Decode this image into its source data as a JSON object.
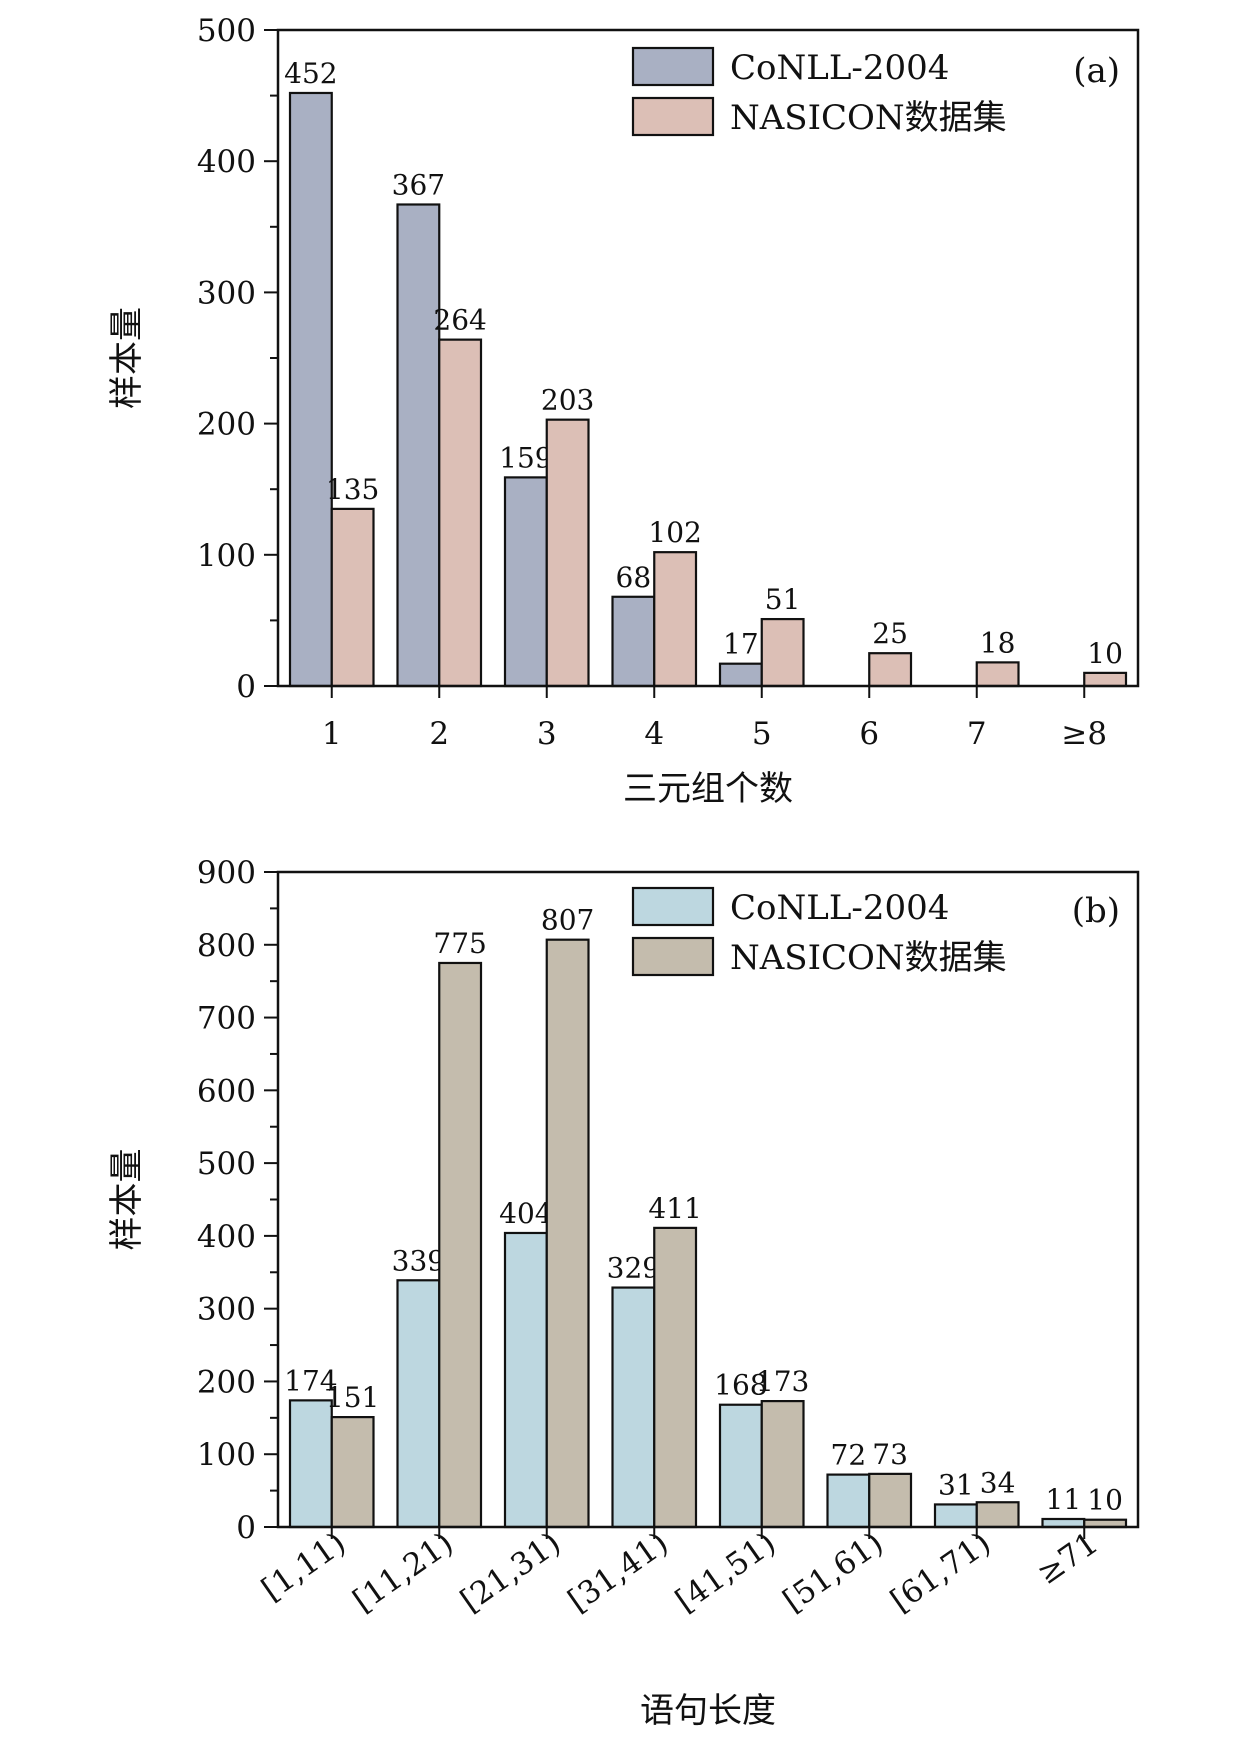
{
  "chart_data": [
    {
      "type": "bar",
      "panel": "(a)",
      "xlabel": "三元组个数",
      "ylabel": "样本量",
      "categories": [
        "1",
        "2",
        "3",
        "4",
        "5",
        "6",
        "7",
        "≥8"
      ],
      "series": [
        {
          "name": "CoNLL-2004",
          "color": "#a9b0c3",
          "values": [
            452,
            367,
            159,
            68,
            17,
            null,
            null,
            null
          ]
        },
        {
          "name": "NASICON数据集",
          "color": "#dcbfb6",
          "values": [
            135,
            264,
            203,
            102,
            51,
            25,
            18,
            10
          ]
        }
      ],
      "ylim": [
        0,
        500
      ],
      "yticks": [
        0,
        100,
        200,
        300,
        400,
        500
      ],
      "legend_position": "top-right"
    },
    {
      "type": "bar",
      "panel": "(b)",
      "xlabel": "语句长度",
      "ylabel": "样本量",
      "categories": [
        "[1,11)",
        "[11,21)",
        "[21,31)",
        "[31,41)",
        "[41,51)",
        "[51,61)",
        "[61,71)",
        "≥71"
      ],
      "series": [
        {
          "name": "CoNLL-2004",
          "color": "#bdd7e0",
          "values": [
            174,
            339,
            404,
            329,
            168,
            72,
            31,
            11
          ]
        },
        {
          "name": "NASICON数据集",
          "color": "#c4bcad",
          "values": [
            151,
            775,
            807,
            411,
            173,
            73,
            34,
            10
          ]
        }
      ],
      "ylim": [
        0,
        900
      ],
      "yticks": [
        0,
        100,
        200,
        300,
        400,
        500,
        600,
        700,
        800,
        900
      ],
      "legend_position": "top-right"
    }
  ]
}
